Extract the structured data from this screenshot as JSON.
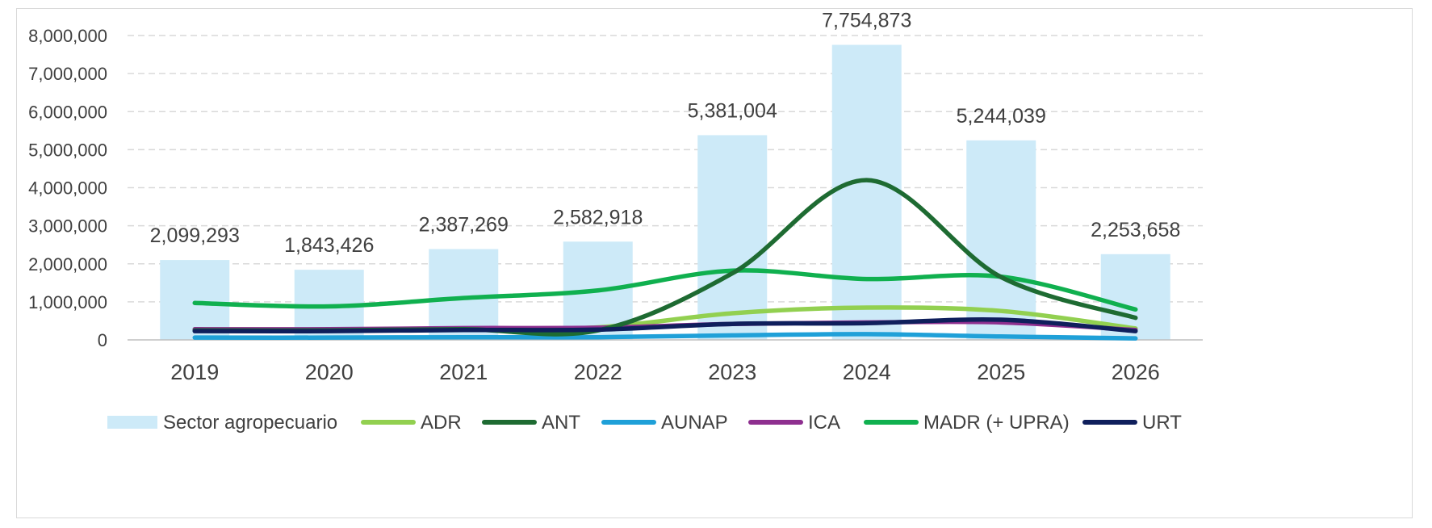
{
  "chart_data": {
    "type": "bar",
    "categories": [
      "2019",
      "2020",
      "2021",
      "2022",
      "2023",
      "2024",
      "2025",
      "2026"
    ],
    "ylim": [
      0,
      8000000
    ],
    "yticks": [
      0,
      1000000,
      2000000,
      3000000,
      4000000,
      5000000,
      6000000,
      7000000,
      8000000
    ],
    "ytick_labels": [
      "0",
      "1,000,000",
      "2,000,000",
      "3,000,000",
      "4,000,000",
      "5,000,000",
      "6,000,000",
      "7,000,000",
      "8,000,000"
    ],
    "grid": true,
    "legend_position": "bottom",
    "bar_series": {
      "name": "Sector agropecuario",
      "color": "#cdeaf8",
      "values": [
        2099293,
        1843426,
        2387269,
        2582918,
        5381004,
        7754873,
        5244039,
        2253658
      ],
      "labels": [
        "2,099,293",
        "1,843,426",
        "2,387,269",
        "2,582,918",
        "5,381,004",
        "7,754,873",
        "5,244,039",
        "2,253,658"
      ]
    },
    "line_series": [
      {
        "name": "ADR",
        "color": "#92d050",
        "values": [
          280000,
          270000,
          300000,
          330000,
          700000,
          850000,
          760000,
          300000
        ]
      },
      {
        "name": "ANT",
        "color": "#1e6b32",
        "values": [
          250000,
          250000,
          280000,
          250000,
          1750000,
          4200000,
          1650000,
          580000
        ]
      },
      {
        "name": "AUNAP",
        "color": "#1fa0d8",
        "values": [
          60000,
          60000,
          70000,
          70000,
          120000,
          150000,
          90000,
          40000
        ]
      },
      {
        "name": "ICA",
        "color": "#8e2f8f",
        "values": [
          280000,
          280000,
          310000,
          320000,
          420000,
          460000,
          460000,
          260000
        ]
      },
      {
        "name": "MADR (+ UPRA)",
        "color": "#10b04f",
        "values": [
          970000,
          880000,
          1100000,
          1300000,
          1820000,
          1600000,
          1660000,
          800000
        ]
      },
      {
        "name": "URT",
        "color": "#0f1f5c",
        "values": [
          230000,
          230000,
          260000,
          270000,
          420000,
          440000,
          530000,
          230000
        ]
      }
    ]
  }
}
